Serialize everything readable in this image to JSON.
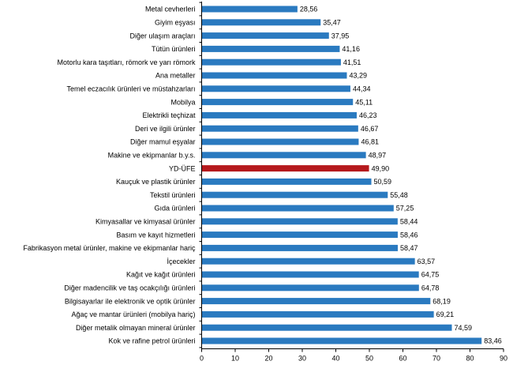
{
  "chart_data": {
    "type": "bar",
    "orientation": "horizontal",
    "categories": [
      "Metal cevherleri",
      "Giyim eşyası",
      "Diğer ulaşım araçları",
      "Tütün ürünleri",
      "Motorlu kara taşıtları, römork ve yarı römork",
      "Ana metaller",
      "Temel eczacılık ürünleri ve müstahzarları",
      "Mobilya",
      "Elektrikli teçhizat",
      "Deri ve ilgili ürünler",
      "Diğer mamul eşyalar",
      "Makine ve ekipmanlar b.y.s.",
      "YD-ÜFE",
      "Kauçuk ve plastik ürünler",
      "Tekstil ürünleri",
      "Gıda ürünleri",
      "Kimyasallar ve kimyasal ürünler",
      "Basım ve kayıt hizmetleri",
      "Fabrikasyon metal ürünler, makine ve ekipmanlar hariç",
      "İçecekler",
      "Kağıt ve kağıt ürünleri",
      "Diğer madencilik ve taş ocakçılığı ürünleri",
      "Bilgisayarlar ile elektronik ve optik ürünler",
      "Ağaç ve mantar ürünleri (mobilya hariç)",
      "Diğer metalik olmayan mineral ürünler",
      "Kok ve rafine petrol ürünleri"
    ],
    "values": [
      28.56,
      35.47,
      37.95,
      41.16,
      41.51,
      43.29,
      44.34,
      45.11,
      46.23,
      46.67,
      46.81,
      48.97,
      49.9,
      50.59,
      55.48,
      57.25,
      58.44,
      58.46,
      58.47,
      63.57,
      64.75,
      64.78,
      68.19,
      69.21,
      74.59,
      83.46
    ],
    "value_labels": [
      "28,56",
      "35,47",
      "37,95",
      "41,16",
      "41,51",
      "43,29",
      "44,34",
      "45,11",
      "46,23",
      "46,67",
      "46,81",
      "48,97",
      "49,90",
      "50,59",
      "55,48",
      "57,25",
      "58,44",
      "58,46",
      "58,47",
      "63,57",
      "64,75",
      "64,78",
      "68,19",
      "69,21",
      "74,59",
      "83,46"
    ],
    "highlight_category": "YD-ÜFE",
    "x_ticks": [
      "0",
      "10",
      "20",
      "30",
      "40",
      "50",
      "60",
      "70",
      "80",
      "90"
    ],
    "xlim": [
      0,
      90
    ],
    "title": "",
    "xlabel": "",
    "ylabel": "",
    "grid": false,
    "legend": "none",
    "colors": {
      "bar": "#2a7ac0",
      "highlight": "#b5191d",
      "axis": "#000000",
      "text": "#000000"
    }
  }
}
